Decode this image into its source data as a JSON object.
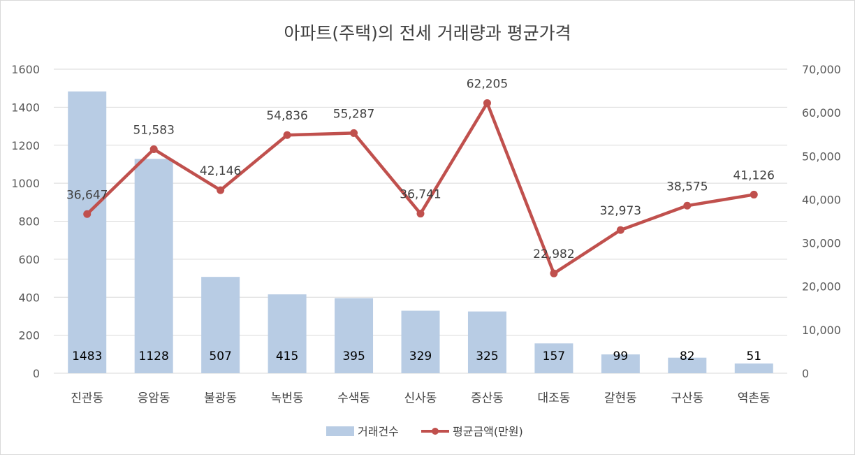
{
  "chart_data": {
    "type": "bar+line",
    "title": "아파트(주택)의 전세 거래량과 평균가격",
    "categories": [
      "진관동",
      "응암동",
      "불광동",
      "녹번동",
      "수색동",
      "신사동",
      "증산동",
      "대조동",
      "갈현동",
      "구산동",
      "역촌동"
    ],
    "series": [
      {
        "name": "거래건수",
        "type": "bar",
        "axis": "left",
        "color": "#b8cce4",
        "values": [
          1483,
          1128,
          507,
          415,
          395,
          329,
          325,
          157,
          99,
          82,
          51
        ],
        "labels": [
          "1483",
          "1128",
          "507",
          "415",
          "395",
          "329",
          "325",
          "157",
          "99",
          "82",
          "51"
        ]
      },
      {
        "name": "평균금액(만원)",
        "type": "line",
        "axis": "right",
        "color": "#c0504d",
        "values": [
          36647,
          51583,
          42146,
          54836,
          55287,
          36741,
          62205,
          22982,
          32973,
          38575,
          41126
        ],
        "labels": [
          "36,647",
          "51,583",
          "42,146",
          "54,836",
          "55,287",
          "36,741",
          "62,205",
          "22,982",
          "32,973",
          "38,575",
          "41,126"
        ]
      }
    ],
    "y_left": {
      "range": [
        0,
        1600
      ],
      "ticks": [
        "0",
        "200",
        "400",
        "600",
        "800",
        "1000",
        "1200",
        "1400",
        "1600"
      ]
    },
    "y_right": {
      "range": [
        0,
        70000
      ],
      "ticks": [
        "0",
        "10,000",
        "20,000",
        "30,000",
        "40,000",
        "50,000",
        "60,000",
        "70,000"
      ]
    },
    "grid": true,
    "legend": "bottom"
  }
}
